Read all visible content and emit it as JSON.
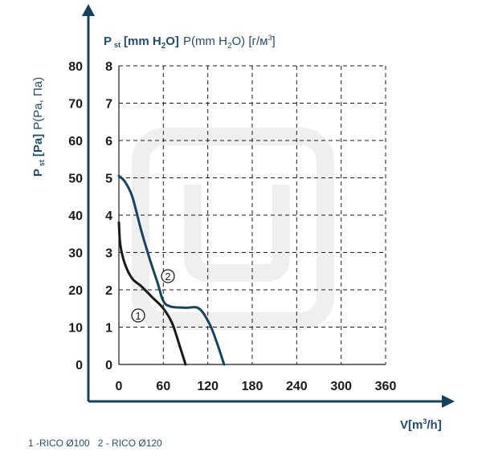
{
  "chart_data": {
    "type": "line",
    "xlabel": "V[m³/h]",
    "ylabel_primary": "P st [Pa] P(Pa, Па)",
    "ylabel_secondary": "P st [mm H2O] P(mm H2O) [г/м³]",
    "x_ticks": [
      "0",
      "60",
      "120",
      "180",
      "240",
      "300",
      "360"
    ],
    "y_ticks_pa": [
      "0",
      "10",
      "20",
      "30",
      "40",
      "50",
      "60",
      "70",
      "80"
    ],
    "y_ticks_mm": [
      "0",
      "1",
      "2",
      "3",
      "4",
      "5",
      "6",
      "7",
      "8"
    ],
    "xlim": [
      0,
      360
    ],
    "ylim": [
      0,
      80
    ],
    "grid": true,
    "series": [
      {
        "name": "1 -RICO Ø100",
        "marker": "1",
        "color": "#1a1a1a",
        "points": [
          [
            0,
            38
          ],
          [
            2,
            32
          ],
          [
            8,
            27
          ],
          [
            18,
            23
          ],
          [
            30,
            21
          ],
          [
            45,
            18
          ],
          [
            60,
            15
          ],
          [
            72,
            11
          ],
          [
            82,
            5
          ],
          [
            90,
            0
          ]
        ]
      },
      {
        "name": "2 - RICO Ø120",
        "marker": "2",
        "color": "#14435f",
        "points": [
          [
            0,
            50.5
          ],
          [
            8,
            49
          ],
          [
            18,
            45
          ],
          [
            30,
            36
          ],
          [
            42,
            28
          ],
          [
            52,
            22
          ],
          [
            60,
            17
          ],
          [
            70,
            15.5
          ],
          [
            90,
            15.2
          ],
          [
            108,
            15
          ],
          [
            122,
            11
          ],
          [
            132,
            6
          ],
          [
            142,
            0
          ]
        ]
      }
    ]
  },
  "header": {
    "secondary_axis_title": {
      "bold_p": "P",
      "bold_st": "st",
      "bold_unit": "[mm H",
      "bold_sub": "2",
      "bold_unit_end": "O]",
      "normal": "P(mm H",
      "normal_sub": "2",
      "normal_end": "O) [г/м",
      "normal_sup": "3",
      "normal_close": "]"
    }
  },
  "primary_axis_title": {
    "bold_p": "P",
    "bold_st": "st",
    "bold_unit": "[Pa]",
    "normal": "P(Pa, Па)"
  },
  "x_axis_title": {
    "main": "V[m",
    "sup": "3",
    "end": "/h]"
  },
  "footer": {
    "legend_text": "1 -RICO Ø100   2 - RICO Ø120"
  },
  "colors": {
    "accent": "#14435f",
    "text_dark": "#1a1a1a",
    "grid": "#1a1a1a"
  }
}
